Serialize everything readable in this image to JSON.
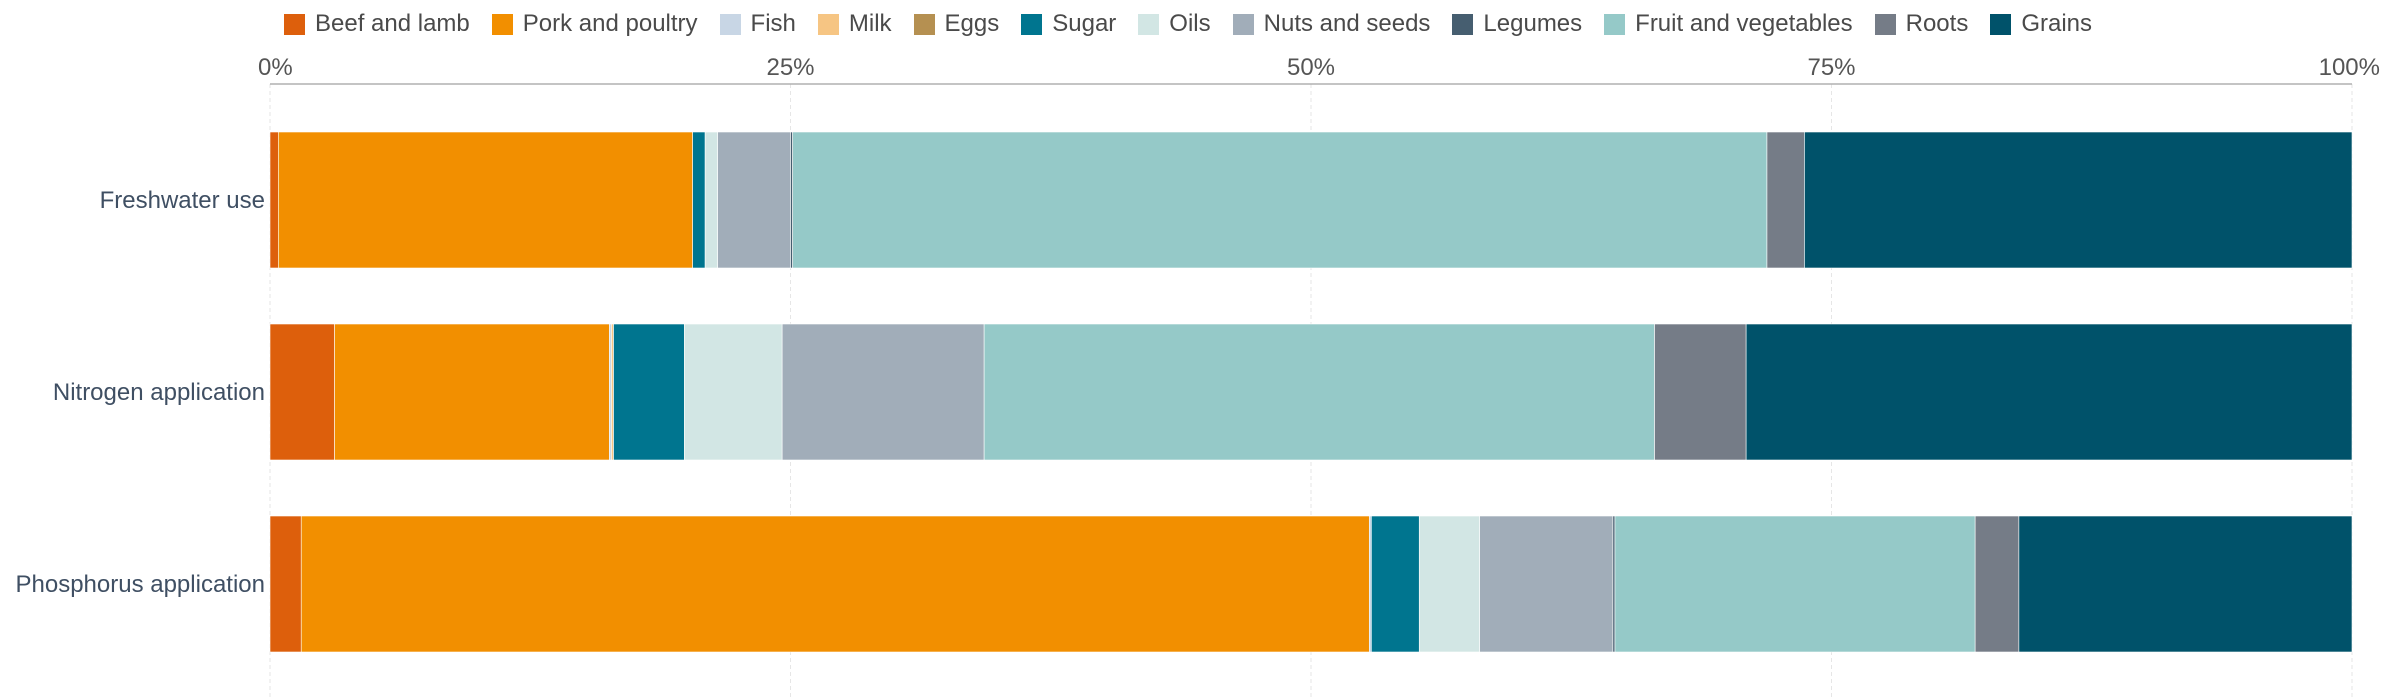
{
  "chart_data": {
    "type": "bar",
    "orientation": "horizontal",
    "stacked": true,
    "percent_scale": true,
    "xlim": [
      0,
      100
    ],
    "x_ticks": [
      "0%",
      "25%",
      "50%",
      "75%",
      "100%"
    ],
    "grid": true,
    "legend_position": "top",
    "categories": [
      "Freshwater use",
      "Nitrogen application",
      "Phosphorus application"
    ],
    "series": [
      {
        "name": "Beef and lamb",
        "color": "#DD5F0C",
        "values": [
          0.4,
          3.1,
          1.5
        ]
      },
      {
        "name": "Pork and poultry",
        "color": "#F28F00",
        "values": [
          19.9,
          13.2,
          51.3
        ]
      },
      {
        "name": "Fish",
        "color": "#C8D6E5",
        "values": [
          0.0,
          0.1,
          0.1
        ]
      },
      {
        "name": "Milk",
        "color": "#F6C583",
        "values": [
          0.0,
          0.1,
          0.0
        ]
      },
      {
        "name": "Eggs",
        "color": "#B59051",
        "values": [
          0.0,
          0.0,
          0.0
        ]
      },
      {
        "name": "Sugar",
        "color": "#00758F",
        "values": [
          0.6,
          3.4,
          2.3
        ]
      },
      {
        "name": "Oils",
        "color": "#D2E6E4",
        "values": [
          0.6,
          4.7,
          2.9
        ]
      },
      {
        "name": "Nuts and seeds",
        "color": "#A1ADB9",
        "values": [
          3.5,
          9.7,
          6.4
        ]
      },
      {
        "name": "Legumes",
        "color": "#465E70",
        "values": [
          0.1,
          0.0,
          0.1
        ]
      },
      {
        "name": "Fruit and vegetables",
        "color": "#95C9C8",
        "values": [
          46.8,
          32.2,
          17.3
        ]
      },
      {
        "name": "Roots",
        "color": "#757C87",
        "values": [
          1.8,
          4.4,
          2.1
        ]
      },
      {
        "name": "Grains",
        "color": "#00526A",
        "values": [
          26.3,
          29.1,
          16.0
        ]
      }
    ]
  }
}
